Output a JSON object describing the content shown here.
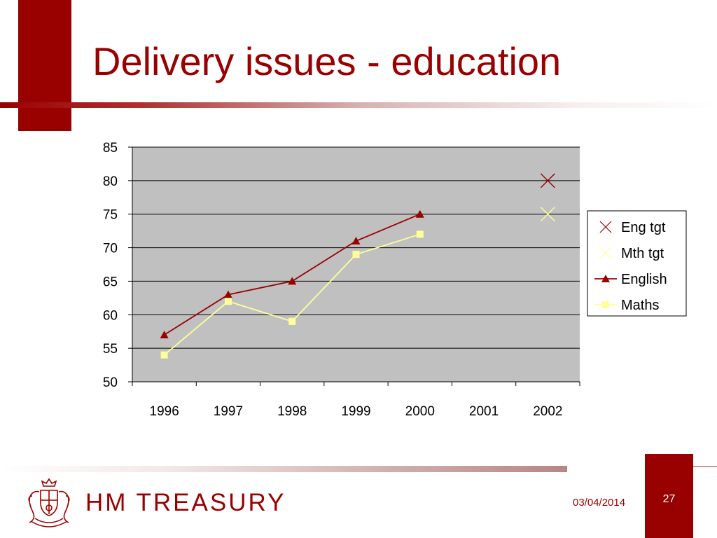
{
  "slide": {
    "title": "Delivery issues - education",
    "date": "03/04/2014",
    "page_number": "27",
    "org_name": "HM TREASURY"
  },
  "colors": {
    "brand": "#990000",
    "english": "#990000",
    "maths": "#ffff99",
    "plot_bg": "#c0c0c0"
  },
  "icons": {
    "crest": "royal-coat-of-arms-icon"
  },
  "chart_data": {
    "type": "line",
    "title": "",
    "xlabel": "",
    "ylabel": "",
    "categories": [
      "1996",
      "1997",
      "1998",
      "1999",
      "2000",
      "2001",
      "2002"
    ],
    "ylim": [
      50,
      85
    ],
    "yticks": [
      50,
      55,
      60,
      65,
      70,
      75,
      80,
      85
    ],
    "grid": true,
    "legend_position": "right",
    "series": [
      {
        "name": "Eng tgt",
        "marker": "x",
        "line": false,
        "color": "#990000",
        "values": [
          null,
          null,
          null,
          null,
          null,
          null,
          80
        ]
      },
      {
        "name": "Mth tgt",
        "marker": "x",
        "line": false,
        "color": "#ffff99",
        "values": [
          null,
          null,
          null,
          null,
          null,
          null,
          75
        ]
      },
      {
        "name": "English",
        "marker": "triangle",
        "line": true,
        "color": "#990000",
        "values": [
          57,
          63,
          65,
          71,
          75,
          null,
          null
        ]
      },
      {
        "name": "Maths",
        "marker": "square",
        "line": true,
        "color": "#ffff99",
        "values": [
          54,
          62,
          59,
          69,
          72,
          null,
          null
        ]
      }
    ]
  }
}
